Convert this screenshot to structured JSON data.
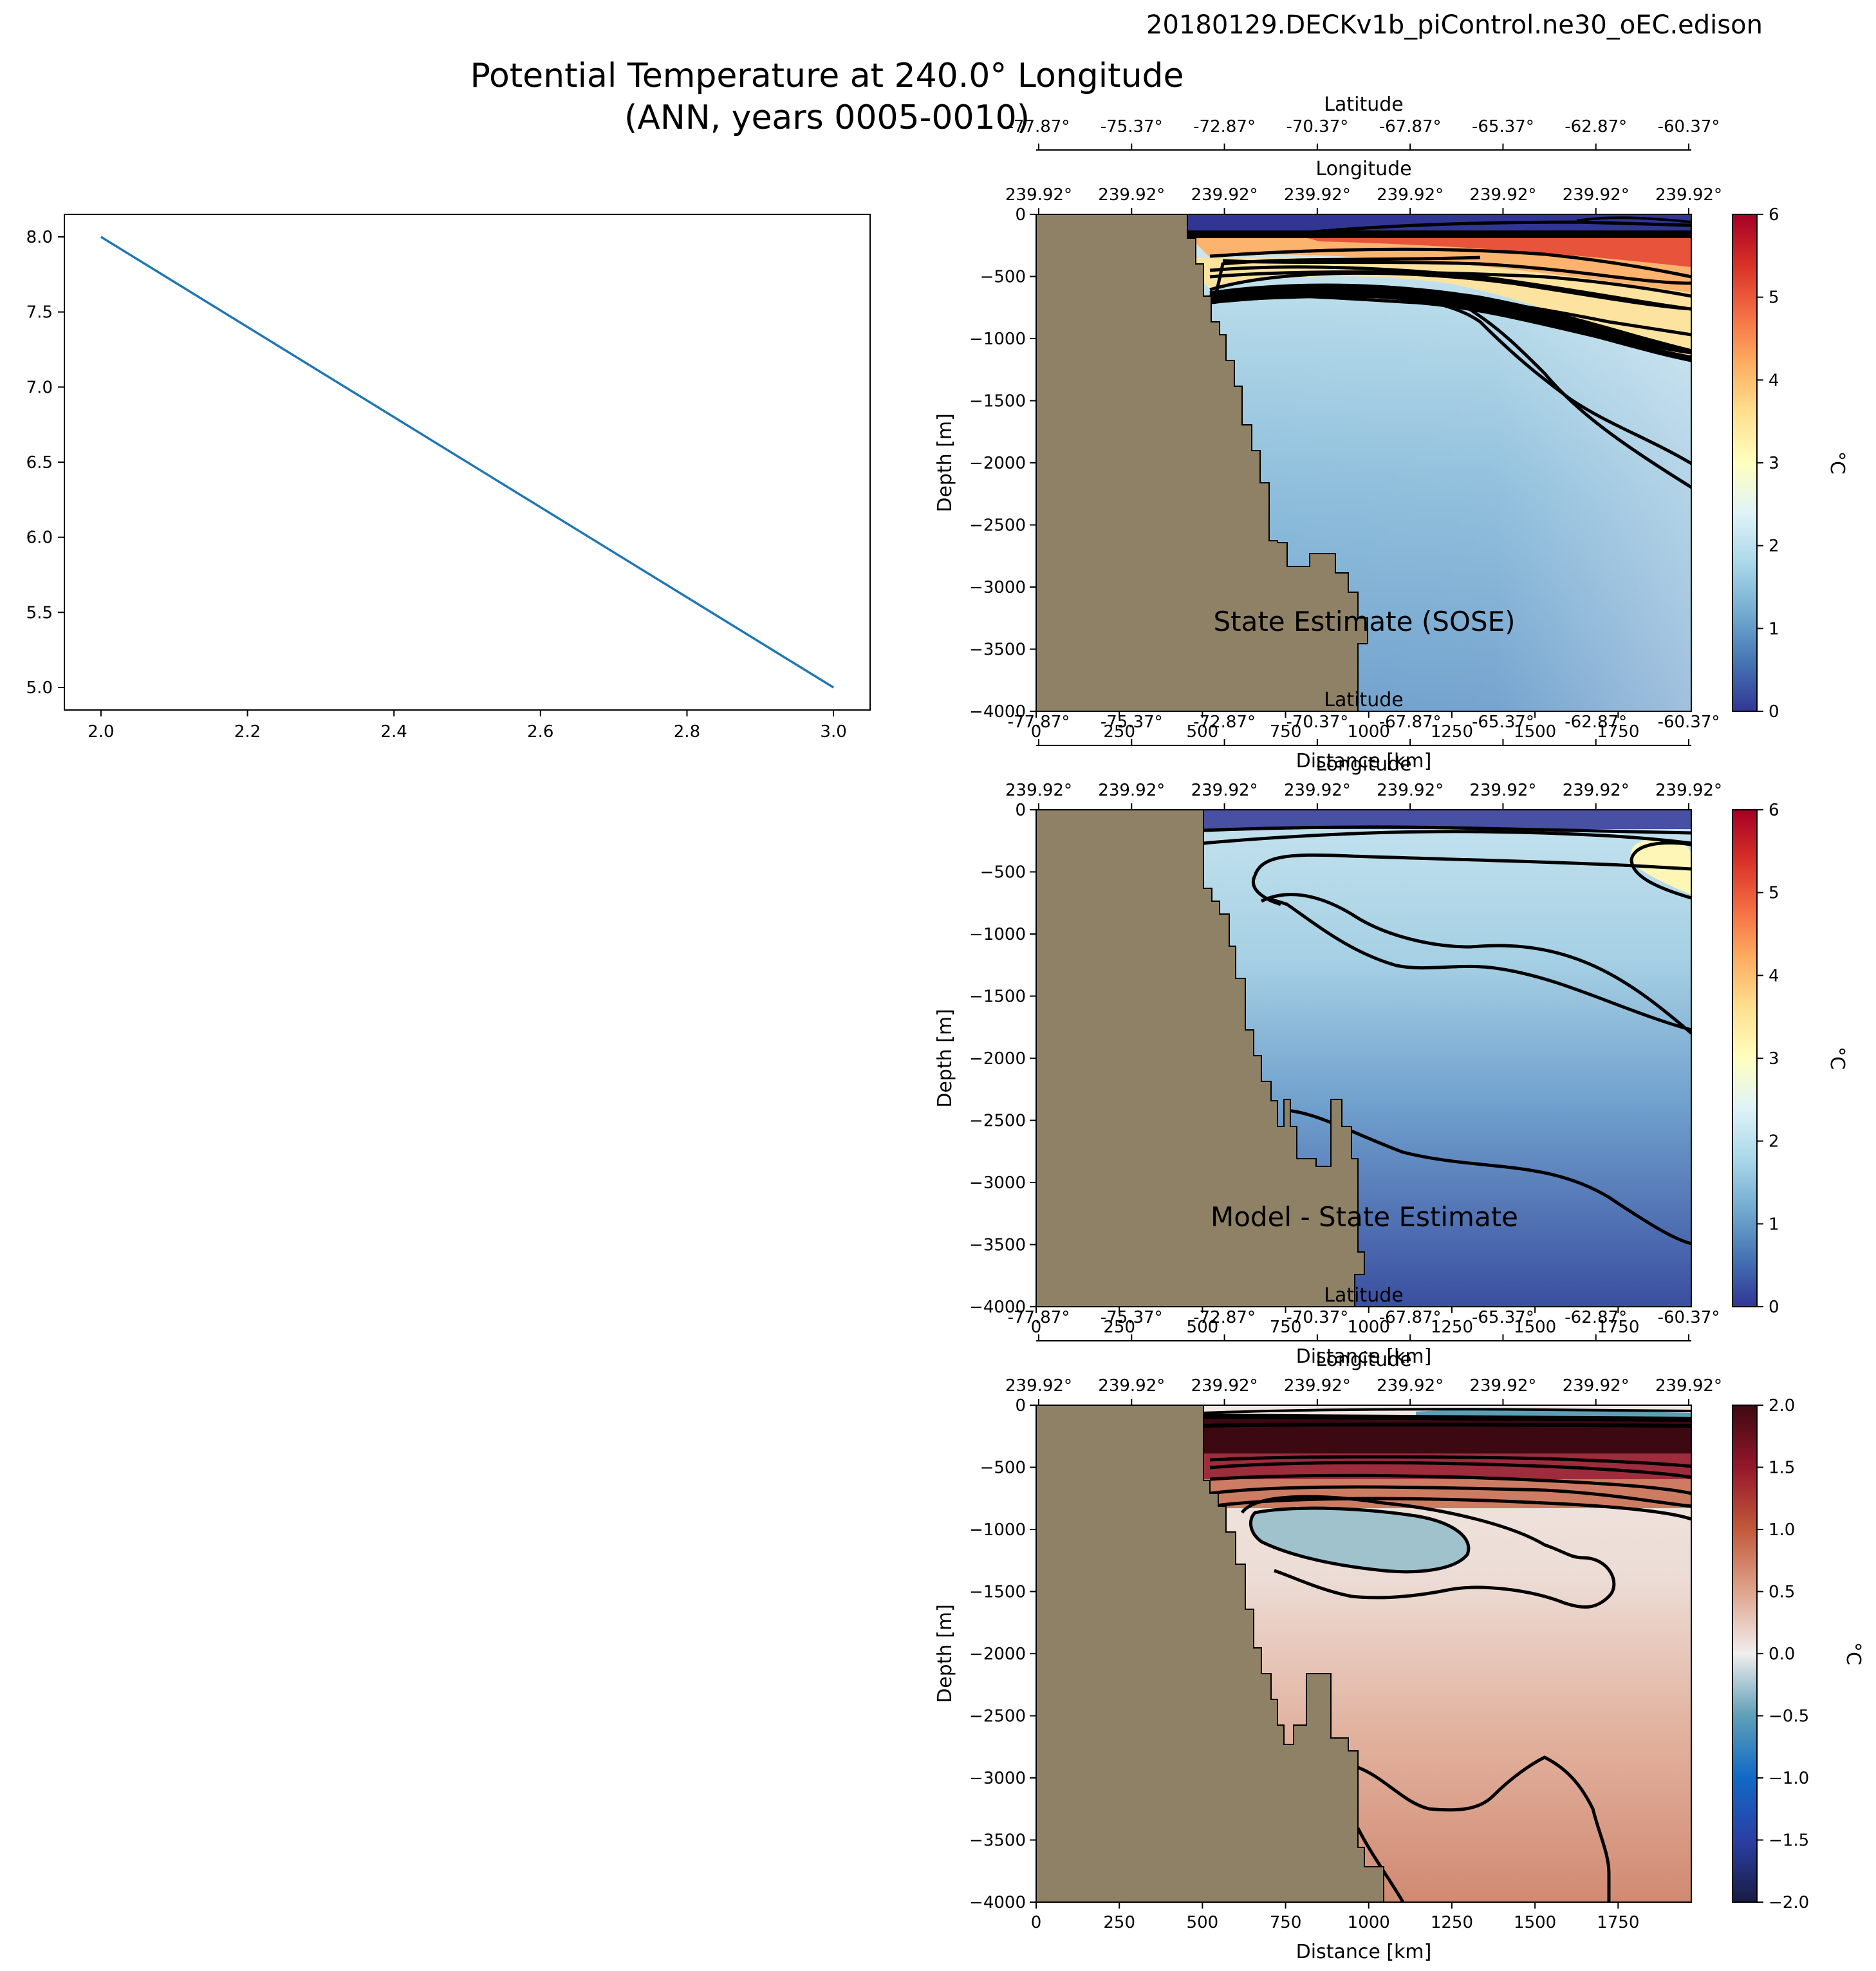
{
  "header": {
    "run_id": "20180129.DECKv1b_piControl.ne30_oEC.edison",
    "title_line1": "Potential Temperature at 240.0° Longitude",
    "title_line2": "(ANN, years 0005-0010)"
  },
  "chart_data": [
    {
      "type": "line",
      "x": [
        2.0,
        3.0
      ],
      "y": [
        8.0,
        5.0
      ],
      "xlim": [
        1.95,
        3.05
      ],
      "ylim": [
        4.85,
        8.15
      ],
      "xticks": [
        "2.0",
        "2.2",
        "2.4",
        "2.6",
        "2.8",
        "3.0"
      ],
      "yticks": [
        "5.0",
        "5.5",
        "6.0",
        "6.5",
        "7.0",
        "7.5",
        "8.0"
      ],
      "color": "#1f77b4"
    },
    {
      "type": "heatmap",
      "label": "State Estimate (SOSE)",
      "xlabel": "Distance [km]",
      "ylabel": "Depth [m]",
      "top_axis_1": "Latitude",
      "top_axis_2": "Longitude",
      "colorbar_unit": "°C",
      "colorbar_ticks": [
        "0",
        "1",
        "2",
        "3",
        "4",
        "5",
        "6"
      ],
      "clim": [
        0,
        6
      ],
      "xlim": [
        0,
        1970
      ],
      "ylim": [
        -4000,
        0
      ],
      "colormap": "RdYlBu_r"
    },
    {
      "type": "heatmap",
      "label": "Model - State Estimate",
      "xlabel": "Distance [km]",
      "ylabel": "Depth [m]",
      "top_axis_1": "Latitude",
      "top_axis_2": "Longitude",
      "colorbar_unit": "°C",
      "colorbar_ticks": [
        "0",
        "1",
        "2",
        "3",
        "4",
        "5",
        "6"
      ],
      "clim": [
        0,
        6
      ],
      "xlim": [
        0,
        1970
      ],
      "ylim": [
        -4000,
        0
      ],
      "colormap": "RdYlBu_r"
    },
    {
      "type": "heatmap",
      "label": "",
      "xlabel": "Distance [km]",
      "ylabel": "Depth [m]",
      "top_axis_1": "Latitude",
      "top_axis_2": "Longitude",
      "colorbar_unit": "°C",
      "colorbar_ticks": [
        "−2.0",
        "−1.5",
        "−1.0",
        "−0.5",
        "0.0",
        "0.5",
        "1.0",
        "1.5",
        "2.0"
      ],
      "clim": [
        -2,
        2
      ],
      "xlim": [
        0,
        1970
      ],
      "ylim": [
        -4000,
        0
      ],
      "colormap": "balance"
    }
  ],
  "section_axes": {
    "distance_ticks": [
      "0",
      "250",
      "500",
      "750",
      "1000",
      "1250",
      "1500",
      "1750"
    ],
    "depth_ticks": [
      "0",
      "−500",
      "−1000",
      "−1500",
      "−2000",
      "−2500",
      "−3000",
      "−3500",
      "−4000"
    ],
    "latitude_ticks": [
      "-77.87°",
      "-75.37°",
      "-72.87°",
      "-70.37°",
      "-67.87°",
      "-65.37°",
      "-62.87°",
      "-60.37°"
    ],
    "longitude_ticks": [
      "239.92°",
      "239.92°",
      "239.92°",
      "239.92°",
      "239.92°",
      "239.92°",
      "239.92°",
      "239.92°"
    ]
  },
  "colors": {
    "land": "#8f8166",
    "line": "#1f77b4"
  }
}
